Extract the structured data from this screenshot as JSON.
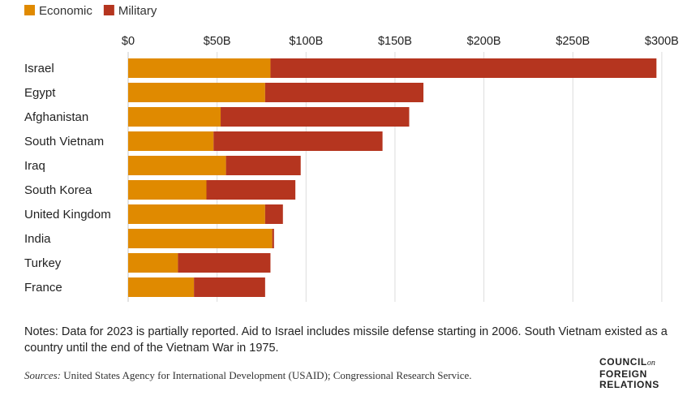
{
  "chart_data": {
    "type": "bar",
    "orientation": "horizontal",
    "stacked": true,
    "categories": [
      "Israel",
      "Egypt",
      "Afghanistan",
      "South Vietnam",
      "Iraq",
      "South Korea",
      "United Kingdom",
      "India",
      "Turkey",
      "France"
    ],
    "series": [
      {
        "name": "Economic",
        "color": "#E08A00",
        "values": [
          80,
          77,
          52,
          48,
          55,
          44,
          77,
          81,
          28,
          37
        ]
      },
      {
        "name": "Military",
        "color": "#B5351F",
        "values": [
          217,
          89,
          106,
          95,
          42,
          50,
          10,
          1,
          52,
          40
        ]
      }
    ],
    "xlim": [
      0,
      300
    ],
    "xticks": [
      {
        "value": 0,
        "label": "$0"
      },
      {
        "value": 50,
        "label": "$50B"
      },
      {
        "value": 100,
        "label": "$100B"
      },
      {
        "value": 150,
        "label": "$150B"
      },
      {
        "value": 200,
        "label": "$200B"
      },
      {
        "value": 250,
        "label": "$250B"
      },
      {
        "value": 300,
        "label": "$300B"
      }
    ],
    "legend_position": "top-left",
    "grid": "vertical"
  },
  "notes": "Notes: Data for 2023 is partially reported. Aid to Israel includes missile defense starting in 2006. South Vietnam existed as a country until the end of the Vietnam War in 1975.",
  "sources": {
    "label": "Sources:",
    "text": " United States Agency for International Development (USAID); Congressional Research Service."
  },
  "logo": {
    "line1": "COUNCIL",
    "on": "on",
    "line2": "FOREIGN",
    "line3": "RELATIONS"
  }
}
